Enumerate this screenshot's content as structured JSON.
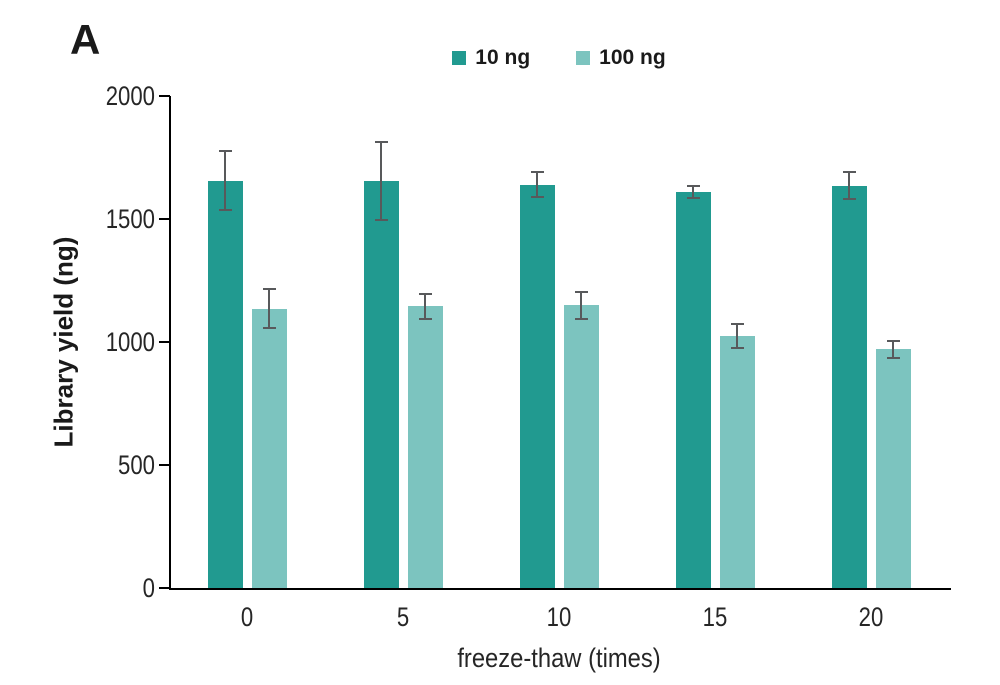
{
  "panel_label": "A",
  "colors": {
    "series1": "#219a90",
    "series2": "#7cc4bf",
    "error_bar": "#58595b",
    "axis": "#000000",
    "text": "#1a1a1a"
  },
  "legend": {
    "items": [
      {
        "label": "10 ng",
        "color": "#219a90"
      },
      {
        "label": "100 ng",
        "color": "#7cc4bf"
      }
    ],
    "position": "top-center"
  },
  "chart_data": {
    "type": "bar",
    "title": "",
    "xlabel": "freeze-thaw (times)",
    "ylabel": "Library yield (ng)",
    "categories": [
      "0",
      "5",
      "10",
      "15",
      "20"
    ],
    "series": [
      {
        "name": "10 ng",
        "color": "#219a90",
        "values": [
          1655,
          1655,
          1640,
          1610,
          1635
        ],
        "errors": [
          120,
          160,
          50,
          25,
          55
        ]
      },
      {
        "name": "100 ng",
        "color": "#7cc4bf",
        "values": [
          1135,
          1145,
          1150,
          1025,
          970
        ],
        "errors": [
          80,
          50,
          55,
          50,
          35
        ]
      }
    ],
    "ylim": [
      0,
      2000
    ],
    "yticks": [
      0,
      500,
      1000,
      1500,
      2000
    ],
    "grid": false,
    "legend_position": "top-center"
  }
}
